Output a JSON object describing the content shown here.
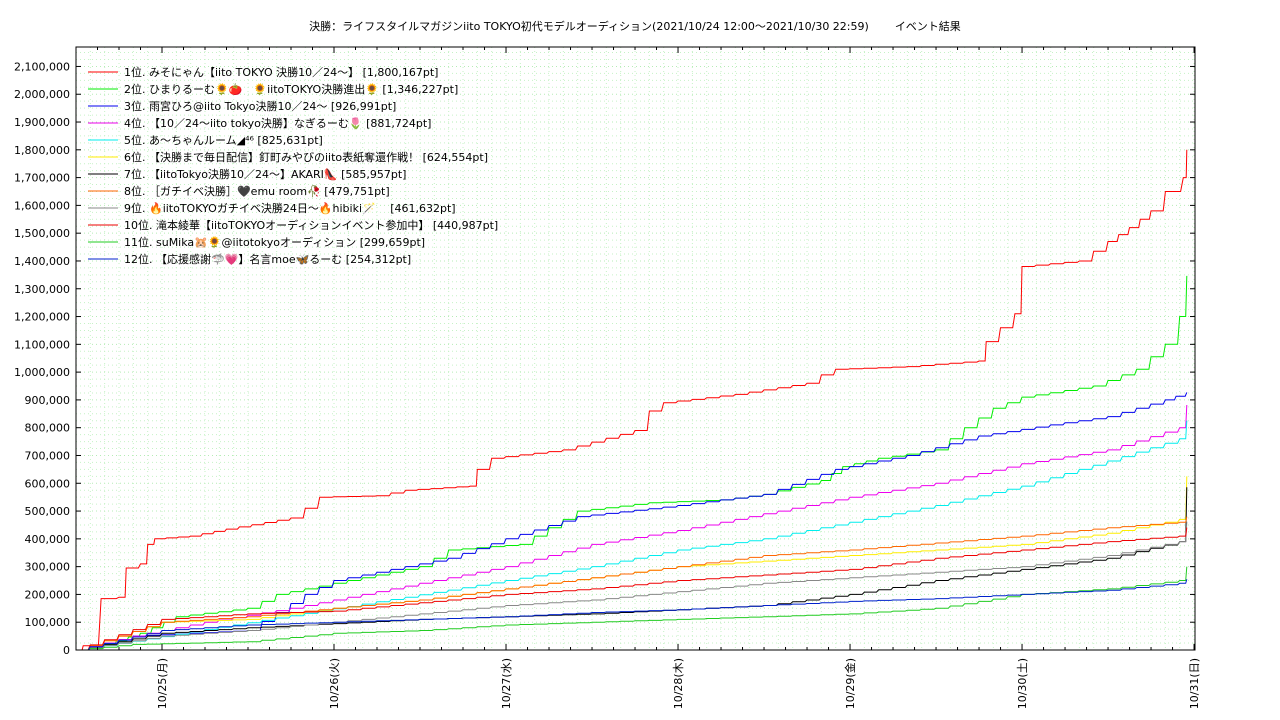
{
  "chart_data": {
    "type": "line",
    "title": "決勝：ライフスタイルマガジンiito TOKYO初代モデルオーディション(2021/10/24 12:00〜2021/10/30 22:59)",
    "subtitle": "イベント結果",
    "xlabel": "",
    "ylabel": "",
    "ylim": [
      0,
      2170000
    ],
    "yticks": [
      0,
      100000,
      200000,
      300000,
      400000,
      500000,
      600000,
      700000,
      800000,
      900000,
      1000000,
      1100000,
      1200000,
      1300000,
      1400000,
      1500000,
      1600000,
      1700000,
      1800000,
      1900000,
      2000000,
      2100000
    ],
    "ytick_labels": [
      "0",
      "100,000",
      "200,000",
      "300,000",
      "400,000",
      "500,000",
      "600,000",
      "700,000",
      "800,000",
      "900,000",
      "1,000,000",
      "1,100,000",
      "1,200,000",
      "1,300,000",
      "1,400,000",
      "1,500,000",
      "1,600,000",
      "1,700,000",
      "1,800,000",
      "1,900,000",
      "2,000,000",
      "2,100,000"
    ],
    "xlim": [
      "2021-10-24 12:00",
      "2021-10-31 00:08"
    ],
    "xticks": [
      "2021-10-25 00:00",
      "2021-10-26 00:00",
      "2021-10-27 00:00",
      "2021-10-28 00:00",
      "2021-10-29 00:00",
      "2021-10-30 00:00",
      "2021-10-31 00:00"
    ],
    "xtick_labels": [
      "10/25(月)",
      "10/26(火)",
      "10/27(水)",
      "10/28(木)",
      "10/29(金)",
      "10/30(土)",
      "10/31(日)"
    ],
    "grid": true,
    "legend_position": "top-left",
    "series": [
      {
        "name": "1位. みそにゃん【iito TOKYO 決勝10／24〜】 [1,800,167pt]",
        "color": "#ff0000",
        "points": [
          [
            "2021-10-24 12:00",
            0
          ],
          [
            "2021-10-24 13:00",
            15000
          ],
          [
            "2021-10-24 15:30",
            185000
          ],
          [
            "2021-10-24 18:00",
            190000
          ],
          [
            "2021-10-24 19:00",
            295000
          ],
          [
            "2021-10-24 21:00",
            310000
          ],
          [
            "2021-10-24 22:00",
            380000
          ],
          [
            "2021-10-24 23:00",
            400000
          ],
          [
            "2021-10-25 04:00",
            410000
          ],
          [
            "2021-10-25 09:00",
            435000
          ],
          [
            "2021-10-25 18:00",
            475000
          ],
          [
            "2021-10-25 20:00",
            510000
          ],
          [
            "2021-10-25 22:00",
            550000
          ],
          [
            "2021-10-26 06:00",
            555000
          ],
          [
            "2021-10-26 10:00",
            575000
          ],
          [
            "2021-10-26 19:00",
            590000
          ],
          [
            "2021-10-26 20:00",
            650000
          ],
          [
            "2021-10-26 22:00",
            690000
          ],
          [
            "2021-10-27 08:00",
            720000
          ],
          [
            "2021-10-27 18:00",
            790000
          ],
          [
            "2021-10-27 20:00",
            860000
          ],
          [
            "2021-10-27 22:00",
            890000
          ],
          [
            "2021-10-28 08:00",
            920000
          ],
          [
            "2021-10-28 18:00",
            960000
          ],
          [
            "2021-10-28 20:00",
            990000
          ],
          [
            "2021-10-28 22:00",
            1010000
          ],
          [
            "2021-10-29 08:00",
            1020000
          ],
          [
            "2021-10-29 18:00",
            1040000
          ],
          [
            "2021-10-29 19:00",
            1110000
          ],
          [
            "2021-10-29 21:00",
            1160000
          ],
          [
            "2021-10-29 23:00",
            1210000
          ],
          [
            "2021-10-30 00:00",
            1380000
          ],
          [
            "2021-10-30 08:00",
            1400000
          ],
          [
            "2021-10-30 12:00",
            1470000
          ],
          [
            "2021-10-30 15:00",
            1520000
          ],
          [
            "2021-10-30 18:00",
            1580000
          ],
          [
            "2021-10-30 20:00",
            1650000
          ],
          [
            "2021-10-30 22:30",
            1700000
          ],
          [
            "2021-10-30 22:59",
            1800167
          ]
        ]
      },
      {
        "name": "2位. ひまりるーむ🌻🍅　🌻iitoTOKYO決勝進出🌻 [1,346,227pt]",
        "color": "#00ee00",
        "points": [
          [
            "2021-10-24 12:00",
            0
          ],
          [
            "2021-10-24 16:00",
            20000
          ],
          [
            "2021-10-24 21:00",
            60000
          ],
          [
            "2021-10-25 02:00",
            120000
          ],
          [
            "2021-10-25 12:00",
            150000
          ],
          [
            "2021-10-25 16:00",
            200000
          ],
          [
            "2021-10-26 02:00",
            250000
          ],
          [
            "2021-10-26 12:00",
            300000
          ],
          [
            "2021-10-26 16:00",
            360000
          ],
          [
            "2021-10-27 02:00",
            380000
          ],
          [
            "2021-10-27 06:00",
            440000
          ],
          [
            "2021-10-27 10:00",
            500000
          ],
          [
            "2021-10-27 20:00",
            530000
          ],
          [
            "2021-10-28 06:00",
            540000
          ],
          [
            "2021-10-28 12:00",
            560000
          ],
          [
            "2021-10-28 20:00",
            610000
          ],
          [
            "2021-10-28 23:00",
            660000
          ],
          [
            "2021-10-29 04:00",
            690000
          ],
          [
            "2021-10-29 12:00",
            720000
          ],
          [
            "2021-10-29 16:00",
            800000
          ],
          [
            "2021-10-29 20:00",
            870000
          ],
          [
            "2021-10-30 00:00",
            910000
          ],
          [
            "2021-10-30 10:00",
            950000
          ],
          [
            "2021-10-30 16:00",
            1010000
          ],
          [
            "2021-10-30 20:00",
            1100000
          ],
          [
            "2021-10-30 22:00",
            1200000
          ],
          [
            "2021-10-30 22:59",
            1346227
          ]
        ]
      },
      {
        "name": "3位. 雨宮ひろ@iito Tokyo決勝10／24〜 [926,991pt]",
        "color": "#0000ee",
        "points": [
          [
            "2021-10-24 12:00",
            0
          ],
          [
            "2021-10-24 20:00",
            50000
          ],
          [
            "2021-10-25 04:00",
            60000
          ],
          [
            "2021-10-25 12:00",
            70000
          ],
          [
            "2021-10-25 20:00",
            200000
          ],
          [
            "2021-10-26 00:00",
            250000
          ],
          [
            "2021-10-26 08:00",
            290000
          ],
          [
            "2021-10-26 16:00",
            330000
          ],
          [
            "2021-10-27 00:00",
            400000
          ],
          [
            "2021-10-27 10:00",
            480000
          ],
          [
            "2021-10-28 00:00",
            520000
          ],
          [
            "2021-10-28 12:00",
            560000
          ],
          [
            "2021-10-28 22:00",
            650000
          ],
          [
            "2021-10-29 08:00",
            700000
          ],
          [
            "2021-10-29 18:00",
            770000
          ],
          [
            "2021-10-30 04:00",
            810000
          ],
          [
            "2021-10-30 12:00",
            840000
          ],
          [
            "2021-10-30 20:00",
            900000
          ],
          [
            "2021-10-30 22:59",
            926991
          ]
        ]
      },
      {
        "name": "4位. 【10／24〜iito tokyo決勝】なぎるーむ🌷 [881,724pt]",
        "color": "#ee00ee",
        "points": [
          [
            "2021-10-24 12:00",
            0
          ],
          [
            "2021-10-24 20:00",
            50000
          ],
          [
            "2021-10-25 06:00",
            100000
          ],
          [
            "2021-10-25 18:00",
            150000
          ],
          [
            "2021-10-26 04:00",
            200000
          ],
          [
            "2021-10-26 14:00",
            250000
          ],
          [
            "2021-10-27 00:00",
            300000
          ],
          [
            "2021-10-27 12:00",
            380000
          ],
          [
            "2021-10-28 00:00",
            430000
          ],
          [
            "2021-10-28 12:00",
            490000
          ],
          [
            "2021-10-29 00:00",
            550000
          ],
          [
            "2021-10-29 12:00",
            600000
          ],
          [
            "2021-10-30 00:00",
            670000
          ],
          [
            "2021-10-30 12:00",
            720000
          ],
          [
            "2021-10-30 22:00",
            800000
          ],
          [
            "2021-10-30 22:59",
            881724
          ]
        ]
      },
      {
        "name": "5位. あ〜ちゃんルーム◢⁴⁶ [825,631pt]",
        "color": "#00eeee",
        "points": [
          [
            "2021-10-24 12:00",
            0
          ],
          [
            "2021-10-24 22:00",
            40000
          ],
          [
            "2021-10-25 10:00",
            90000
          ],
          [
            "2021-10-25 22:00",
            140000
          ],
          [
            "2021-10-26 10:00",
            190000
          ],
          [
            "2021-10-27 00:00",
            250000
          ],
          [
            "2021-10-27 12:00",
            300000
          ],
          [
            "2021-10-28 00:00",
            360000
          ],
          [
            "2021-10-28 12:00",
            400000
          ],
          [
            "2021-10-29 00:00",
            460000
          ],
          [
            "2021-10-29 12:00",
            520000
          ],
          [
            "2021-10-30 00:00",
            590000
          ],
          [
            "2021-10-30 12:00",
            680000
          ],
          [
            "2021-10-30 22:00",
            760000
          ],
          [
            "2021-10-30 22:59",
            825631
          ]
        ]
      },
      {
        "name": "6位. 【決勝まで毎日配信】釘町みやびのiito表紙奪還作戦！ [624,554pt]",
        "color": "#ffee00",
        "points": [
          [
            "2021-10-24 12:00",
            0
          ],
          [
            "2021-10-25 00:00",
            100000
          ],
          [
            "2021-10-25 12:00",
            110000
          ],
          [
            "2021-10-26 00:00",
            150000
          ],
          [
            "2021-10-26 12:00",
            180000
          ],
          [
            "2021-10-27 00:00",
            220000
          ],
          [
            "2021-10-27 12:00",
            260000
          ],
          [
            "2021-10-28 00:00",
            300000
          ],
          [
            "2021-10-28 12:00",
            320000
          ],
          [
            "2021-10-29 00:00",
            340000
          ],
          [
            "2021-10-29 12:00",
            360000
          ],
          [
            "2021-10-30 00:00",
            380000
          ],
          [
            "2021-10-30 12:00",
            420000
          ],
          [
            "2021-10-30 22:00",
            470000
          ],
          [
            "2021-10-30 22:59",
            624554
          ]
        ]
      },
      {
        "name": "7位. 【iitoTokyo決勝10／24〜】AKARI👠 [585,957pt]",
        "color": "#000000",
        "points": [
          [
            "2021-10-24 12:00",
            0
          ],
          [
            "2021-10-25 00:00",
            60000
          ],
          [
            "2021-10-25 12:00",
            80000
          ],
          [
            "2021-10-26 00:00",
            95000
          ],
          [
            "2021-10-26 12:00",
            110000
          ],
          [
            "2021-10-27 00:00",
            120000
          ],
          [
            "2021-10-27 12:00",
            130000
          ],
          [
            "2021-10-28 00:00",
            145000
          ],
          [
            "2021-10-28 12:00",
            160000
          ],
          [
            "2021-10-29 00:00",
            200000
          ],
          [
            "2021-10-29 12:00",
            250000
          ],
          [
            "2021-10-30 00:00",
            290000
          ],
          [
            "2021-10-30 12:00",
            330000
          ],
          [
            "2021-10-30 22:00",
            390000
          ],
          [
            "2021-10-30 22:59",
            585957
          ]
        ]
      },
      {
        "name": "8位. ［ガチイベ決勝］🖤emu room🥀 [479,751pt]",
        "color": "#ff6600",
        "points": [
          [
            "2021-10-24 12:00",
            0
          ],
          [
            "2021-10-25 00:00",
            100000
          ],
          [
            "2021-10-25 12:00",
            120000
          ],
          [
            "2021-10-26 00:00",
            150000
          ],
          [
            "2021-10-26 12:00",
            180000
          ],
          [
            "2021-10-27 00:00",
            220000
          ],
          [
            "2021-10-27 12:00",
            260000
          ],
          [
            "2021-10-28 00:00",
            300000
          ],
          [
            "2021-10-28 12:00",
            340000
          ],
          [
            "2021-10-29 00:00",
            360000
          ],
          [
            "2021-10-29 12:00",
            385000
          ],
          [
            "2021-10-30 00:00",
            410000
          ],
          [
            "2021-10-30 12:00",
            440000
          ],
          [
            "2021-10-30 22:00",
            460000
          ],
          [
            "2021-10-30 22:59",
            479751
          ]
        ]
      },
      {
        "name": "9位. 🔥iitoTOKYOガチイベ決勝24日〜🔥hibiki🪄　 [461,632pt]",
        "color": "#888888",
        "points": [
          [
            "2021-10-24 12:00",
            0
          ],
          [
            "2021-10-25 00:00",
            50000
          ],
          [
            "2021-10-25 12:00",
            70000
          ],
          [
            "2021-10-26 00:00",
            100000
          ],
          [
            "2021-10-26 12:00",
            130000
          ],
          [
            "2021-10-27 00:00",
            160000
          ],
          [
            "2021-10-27 12:00",
            180000
          ],
          [
            "2021-10-28 00:00",
            210000
          ],
          [
            "2021-10-28 12:00",
            240000
          ],
          [
            "2021-10-29 00:00",
            260000
          ],
          [
            "2021-10-29 12:00",
            280000
          ],
          [
            "2021-10-30 00:00",
            300000
          ],
          [
            "2021-10-30 12:00",
            340000
          ],
          [
            "2021-10-30 22:00",
            390000
          ],
          [
            "2021-10-30 22:59",
            461632
          ]
        ]
      },
      {
        "name": "10位. 滝本綾華【iitoTOKYOオーディションイベント参加中】 [440,987pt]",
        "color": "#ee0000",
        "points": [
          [
            "2021-10-24 12:00",
            0
          ],
          [
            "2021-10-25 00:00",
            110000
          ],
          [
            "2021-10-25 12:00",
            130000
          ],
          [
            "2021-10-26 00:00",
            140000
          ],
          [
            "2021-10-26 12:00",
            170000
          ],
          [
            "2021-10-27 00:00",
            200000
          ],
          [
            "2021-10-27 12:00",
            220000
          ],
          [
            "2021-10-28 00:00",
            250000
          ],
          [
            "2021-10-28 12:00",
            270000
          ],
          [
            "2021-10-29 00:00",
            290000
          ],
          [
            "2021-10-29 12:00",
            330000
          ],
          [
            "2021-10-30 00:00",
            360000
          ],
          [
            "2021-10-30 12:00",
            390000
          ],
          [
            "2021-10-30 22:00",
            410000
          ],
          [
            "2021-10-30 22:59",
            440987
          ]
        ]
      },
      {
        "name": "11位. suMika🐹🌻@iitotokyoオーディション [299,659pt]",
        "color": "#22cc22",
        "points": [
          [
            "2021-10-24 12:00",
            0
          ],
          [
            "2021-10-24 20:00",
            20000
          ],
          [
            "2021-10-25 12:00",
            30000
          ],
          [
            "2021-10-26 00:00",
            60000
          ],
          [
            "2021-10-26 12:00",
            70000
          ],
          [
            "2021-10-27 00:00",
            90000
          ],
          [
            "2021-10-27 12:00",
            100000
          ],
          [
            "2021-10-28 00:00",
            110000
          ],
          [
            "2021-10-28 12:00",
            120000
          ],
          [
            "2021-10-29 00:00",
            130000
          ],
          [
            "2021-10-29 12:00",
            150000
          ],
          [
            "2021-10-30 00:00",
            200000
          ],
          [
            "2021-10-30 12:00",
            220000
          ],
          [
            "2021-10-30 22:00",
            250000
          ],
          [
            "2021-10-30 22:59",
            299659
          ]
        ]
      },
      {
        "name": "12位. 【応援感謝🦈💗】名言moe🦋るーむ [254,312pt]",
        "color": "#0022cc",
        "points": [
          [
            "2021-10-24 12:00",
            0
          ],
          [
            "2021-10-25 00:00",
            70000
          ],
          [
            "2021-10-25 12:00",
            90000
          ],
          [
            "2021-10-26 00:00",
            100000
          ],
          [
            "2021-10-26 12:00",
            110000
          ],
          [
            "2021-10-27 00:00",
            120000
          ],
          [
            "2021-10-27 12:00",
            135000
          ],
          [
            "2021-10-28 00:00",
            145000
          ],
          [
            "2021-10-28 12:00",
            160000
          ],
          [
            "2021-10-29 00:00",
            175000
          ],
          [
            "2021-10-29 12:00",
            185000
          ],
          [
            "2021-10-30 00:00",
            200000
          ],
          [
            "2021-10-30 12:00",
            215000
          ],
          [
            "2021-10-30 22:00",
            240000
          ],
          [
            "2021-10-30 22:59",
            254312
          ]
        ]
      }
    ]
  }
}
